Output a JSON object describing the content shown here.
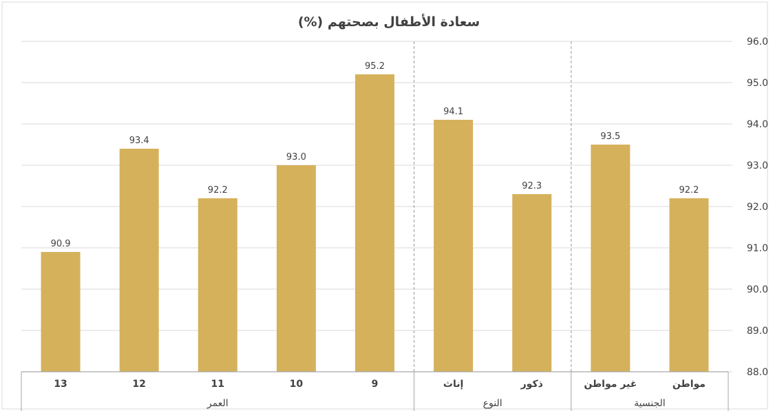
{
  "chart_data": {
    "type": "bar",
    "title": "سعادة الأطفال بصحتهم (%)",
    "categories": [
      "13",
      "12",
      "11",
      "10",
      "9",
      "إناث",
      "ذكور",
      "غير مواطن",
      "مواطن"
    ],
    "values": [
      90.9,
      93.4,
      92.2,
      93.0,
      95.2,
      94.1,
      92.3,
      93.5,
      92.2
    ],
    "data_labels": [
      "90.9",
      "93.4",
      "92.2",
      "93.0",
      "95.2",
      "94.1",
      "92.3",
      "93.5",
      "92.2"
    ],
    "groups": [
      {
        "label": "العمر",
        "categories": [
          "13",
          "12",
          "11",
          "10",
          "9"
        ]
      },
      {
        "label": "النوع",
        "categories": [
          "إناث",
          "ذكور"
        ]
      },
      {
        "label": "الجنسية",
        "categories": [
          "غير مواطن",
          "مواطن"
        ]
      }
    ],
    "y_ticks": [
      "88.0",
      "89.0",
      "90.0",
      "91.0",
      "92.0",
      "93.0",
      "94.0",
      "95.0",
      "96.0"
    ],
    "ylim": [
      88,
      96
    ],
    "y_axis_side": "right",
    "grid": true,
    "legend": "none",
    "colors": {
      "bar": "#D6B15C",
      "grid": "#D9D9D9",
      "axis": "#A6A6A6",
      "separator": "#A6A6A6",
      "text": "#404040"
    }
  }
}
